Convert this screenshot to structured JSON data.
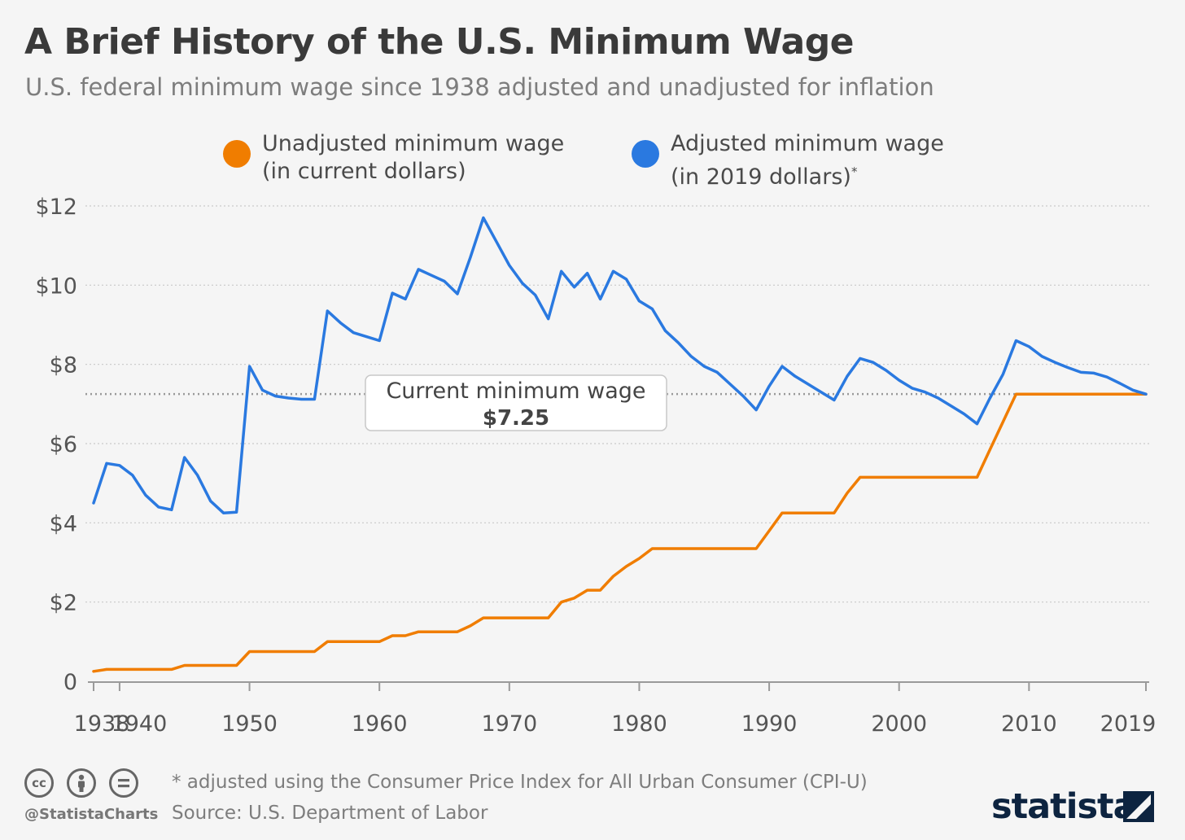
{
  "header": {
    "title": "A Brief History of the U.S. Minimum Wage",
    "subtitle": "U.S. federal minimum wage since 1938 adjusted and unadjusted for inflation"
  },
  "legend": [
    {
      "line1": "Unadjusted minimum wage",
      "line2": "(in current dollars)",
      "mark": "",
      "color": "#f07d00"
    },
    {
      "line1": "Adjusted minimum wage",
      "line2": "(in 2019 dollars)",
      "mark": "*",
      "color": "#2a79e0"
    }
  ],
  "annotation": {
    "label": "Current minimum wage",
    "value": "$7.25",
    "level": 7.25
  },
  "footer": {
    "license_icons": [
      "cc-icon",
      "attribution-icon",
      "no-derivatives-icon"
    ],
    "handle": "@StatistaCharts",
    "note": "* adjusted using the Consumer Price Index for All Urban Consumer (CPI-U)",
    "source": "Source: U.S. Department of Labor",
    "brand": "statista"
  },
  "chart_data": {
    "type": "line",
    "title": "A Brief History of the U.S. Minimum Wage",
    "subtitle": "U.S. federal minimum wage since 1938 adjusted and unadjusted for inflation",
    "xlabel": "",
    "ylabel": "",
    "xlim": [
      1938,
      2019
    ],
    "ylim": [
      0,
      12
    ],
    "x_ticks": [
      1938,
      1940,
      1950,
      1960,
      1970,
      1980,
      1990,
      2000,
      2010,
      2019
    ],
    "y_ticks": [
      0,
      2,
      4,
      6,
      8,
      10,
      12
    ],
    "y_tick_labels": [
      "0",
      "$2",
      "$4",
      "$6",
      "$8",
      "$10",
      "$12"
    ],
    "grid": "horizontal dotted",
    "legend": "top-center",
    "series": [
      {
        "name": "Unadjusted minimum wage (in current dollars)",
        "color": "#f07d00",
        "points": [
          [
            1938,
            0.25
          ],
          [
            1939,
            0.3
          ],
          [
            1944,
            0.3
          ],
          [
            1945,
            0.4
          ],
          [
            1949,
            0.4
          ],
          [
            1950,
            0.75
          ],
          [
            1955,
            0.75
          ],
          [
            1956,
            1.0
          ],
          [
            1960,
            1.0
          ],
          [
            1961,
            1.15
          ],
          [
            1962,
            1.15
          ],
          [
            1963,
            1.25
          ],
          [
            1966,
            1.25
          ],
          [
            1967,
            1.4
          ],
          [
            1968,
            1.6
          ],
          [
            1973,
            1.6
          ],
          [
            1974,
            2.0
          ],
          [
            1975,
            2.1
          ],
          [
            1976,
            2.3
          ],
          [
            1977,
            2.3
          ],
          [
            1978,
            2.65
          ],
          [
            1979,
            2.9
          ],
          [
            1980,
            3.1
          ],
          [
            1981,
            3.35
          ],
          [
            1989,
            3.35
          ],
          [
            1990,
            3.8
          ],
          [
            1991,
            4.25
          ],
          [
            1995,
            4.25
          ],
          [
            1996,
            4.75
          ],
          [
            1997,
            5.15
          ],
          [
            2006,
            5.15
          ],
          [
            2007,
            5.85
          ],
          [
            2008,
            6.55
          ],
          [
            2009,
            7.25
          ],
          [
            2019,
            7.25
          ]
        ]
      },
      {
        "name": "Adjusted minimum wage (in 2019 dollars)",
        "color": "#2a79e0",
        "points": [
          [
            1938,
            4.5
          ],
          [
            1939,
            5.5
          ],
          [
            1940,
            5.45
          ],
          [
            1941,
            5.2
          ],
          [
            1942,
            4.7
          ],
          [
            1943,
            4.4
          ],
          [
            1944,
            4.33
          ],
          [
            1945,
            5.65
          ],
          [
            1946,
            5.2
          ],
          [
            1947,
            4.55
          ],
          [
            1948,
            4.25
          ],
          [
            1949,
            4.27
          ],
          [
            1950,
            7.95
          ],
          [
            1951,
            7.35
          ],
          [
            1952,
            7.2
          ],
          [
            1953,
            7.15
          ],
          [
            1954,
            7.12
          ],
          [
            1955,
            7.12
          ],
          [
            1956,
            9.35
          ],
          [
            1957,
            9.05
          ],
          [
            1958,
            8.8
          ],
          [
            1959,
            8.7
          ],
          [
            1960,
            8.6
          ],
          [
            1961,
            9.8
          ],
          [
            1962,
            9.65
          ],
          [
            1963,
            10.4
          ],
          [
            1964,
            10.25
          ],
          [
            1965,
            10.1
          ],
          [
            1966,
            9.78
          ],
          [
            1967,
            10.7
          ],
          [
            1968,
            11.7
          ],
          [
            1969,
            11.1
          ],
          [
            1970,
            10.5
          ],
          [
            1971,
            10.05
          ],
          [
            1972,
            9.75
          ],
          [
            1973,
            9.15
          ],
          [
            1974,
            10.35
          ],
          [
            1975,
            9.95
          ],
          [
            1976,
            10.3
          ],
          [
            1977,
            9.65
          ],
          [
            1978,
            10.35
          ],
          [
            1979,
            10.15
          ],
          [
            1980,
            9.6
          ],
          [
            1981,
            9.4
          ],
          [
            1982,
            8.85
          ],
          [
            1983,
            8.55
          ],
          [
            1984,
            8.2
          ],
          [
            1985,
            7.95
          ],
          [
            1986,
            7.8
          ],
          [
            1987,
            7.5
          ],
          [
            1988,
            7.2
          ],
          [
            1989,
            6.85
          ],
          [
            1990,
            7.45
          ],
          [
            1991,
            7.95
          ],
          [
            1992,
            7.7
          ],
          [
            1993,
            7.5
          ],
          [
            1994,
            7.3
          ],
          [
            1995,
            7.1
          ],
          [
            1996,
            7.7
          ],
          [
            1997,
            8.15
          ],
          [
            1998,
            8.05
          ],
          [
            1999,
            7.85
          ],
          [
            2000,
            7.6
          ],
          [
            2001,
            7.4
          ],
          [
            2002,
            7.3
          ],
          [
            2003,
            7.15
          ],
          [
            2004,
            6.95
          ],
          [
            2005,
            6.75
          ],
          [
            2006,
            6.5
          ],
          [
            2007,
            7.15
          ],
          [
            2008,
            7.75
          ],
          [
            2009,
            8.6
          ],
          [
            2010,
            8.45
          ],
          [
            2011,
            8.2
          ],
          [
            2012,
            8.05
          ],
          [
            2013,
            7.92
          ],
          [
            2014,
            7.8
          ],
          [
            2015,
            7.78
          ],
          [
            2016,
            7.68
          ],
          [
            2017,
            7.52
          ],
          [
            2018,
            7.35
          ],
          [
            2019,
            7.25
          ]
        ]
      }
    ],
    "reference_line": {
      "value": 7.25,
      "style": "dotted"
    }
  }
}
